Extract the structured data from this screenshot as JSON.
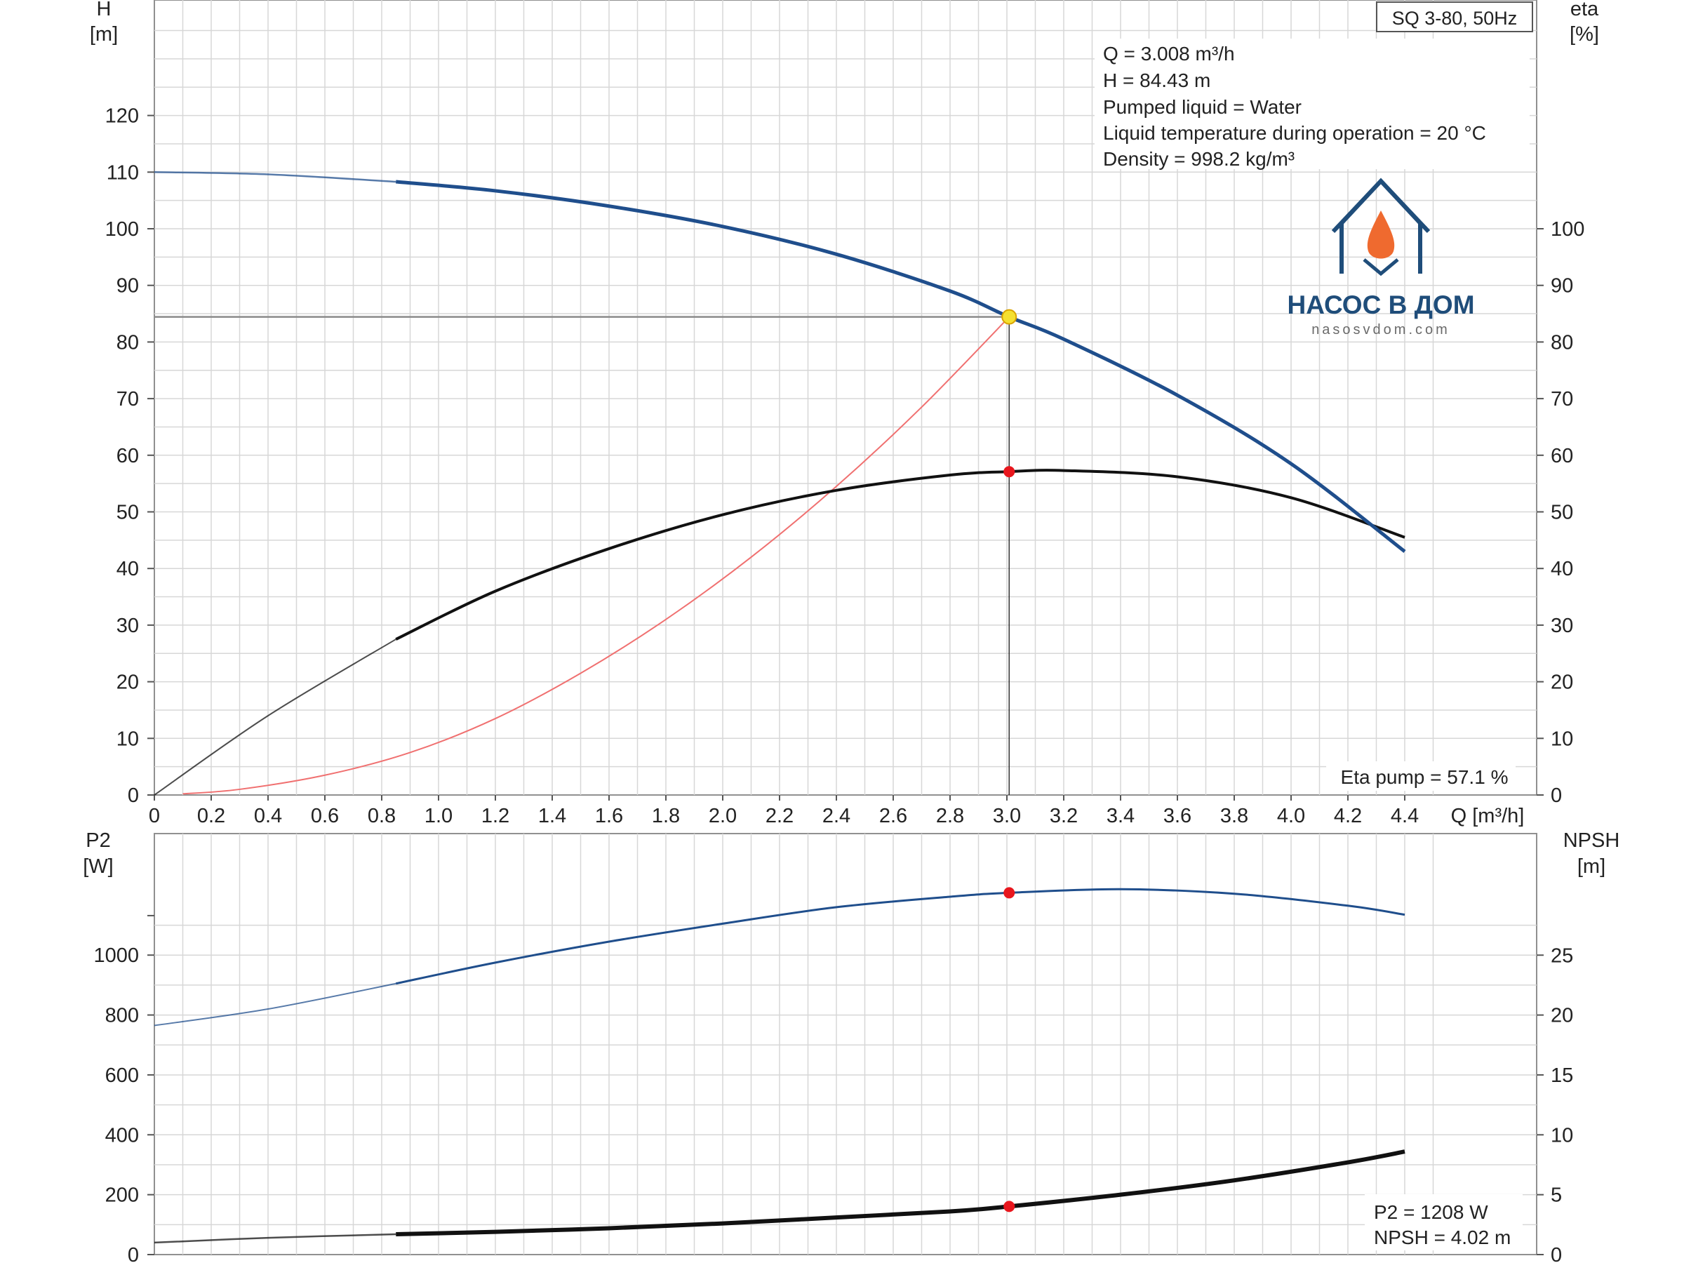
{
  "chart_data": [
    {
      "type": "line",
      "title": "SQ 3-80, 50Hz",
      "xlabel": "Q [m³/h]",
      "ylabel_left": [
        "H",
        "[m]"
      ],
      "ylabel_right": [
        "eta",
        "[%]"
      ],
      "xlim": [
        0,
        4.6
      ],
      "ylim_left": [
        0,
        135
      ],
      "ylim_right": [
        0,
        135
      ],
      "x_ticks": [
        "0",
        "0.2",
        "0.4",
        "0.6",
        "0.8",
        "1.0",
        "1.2",
        "1.4",
        "1.6",
        "1.8",
        "2.0",
        "2.2",
        "2.4",
        "2.6",
        "2.8",
        "3.0",
        "3.2",
        "3.4",
        "3.6",
        "3.8",
        "4.0",
        "4.2",
        "4.4"
      ],
      "y_ticks_left": [
        "0",
        "10",
        "20",
        "30",
        "40",
        "50",
        "60",
        "70",
        "80",
        "90",
        "100",
        "110",
        "120"
      ],
      "y_ticks_right": [
        "0",
        "10",
        "20",
        "30",
        "40",
        "50",
        "60",
        "70",
        "80",
        "90",
        "100"
      ],
      "grid": true,
      "series": [
        {
          "color": "#1f4e8c",
          "axis": "left",
          "x": [
            0,
            0.4,
            0.85,
            1.2,
            1.6,
            2.0,
            2.4,
            2.8,
            3.008,
            3.2,
            3.6,
            4.0,
            4.4
          ],
          "y": [
            110,
            109.6,
            108.3,
            106.7,
            104.0,
            100.4,
            95.5,
            89.0,
            84.43,
            80.5,
            70.6,
            58.5,
            43
          ]
        },
        {
          "color": "#111111",
          "axis": "right",
          "x": [
            0,
            0.4,
            0.85,
            1.2,
            1.6,
            2.0,
            2.4,
            2.8,
            3.008,
            3.2,
            3.6,
            4.0,
            4.4
          ],
          "y": [
            0,
            14,
            27.5,
            36,
            43.5,
            49.5,
            53.8,
            56.5,
            57.1,
            57.3,
            56.2,
            52.5,
            45.5
          ]
        },
        {
          "color": "#f07070",
          "axis": "left",
          "x": [
            0.1,
            0.3,
            0.6,
            0.9,
            1.2,
            1.5,
            1.8,
            2.1,
            2.4,
            2.7,
            3.008
          ],
          "y": [
            0.2,
            1,
            3.5,
            7.5,
            13.5,
            21.5,
            31,
            42,
            54.5,
            68.5,
            84.43
          ]
        }
      ],
      "duty_point": {
        "q": 3.008,
        "h": 84.43,
        "eta": 57.1
      },
      "annotations": [
        "Q = 3.008 m³/h",
        "H = 84.43 m",
        "Pumped liquid = Water",
        "Liquid temperature during operation = 20 °C",
        "Density = 998.2 kg/m³"
      ],
      "eta_label": "Eta pump = 57.1 %"
    },
    {
      "type": "line",
      "ylabel_left": [
        "P2",
        "[W]"
      ],
      "ylabel_right": [
        "NPSH",
        "[m]"
      ],
      "xlim": [
        0,
        4.6
      ],
      "ylim_left": [
        0,
        1200
      ],
      "ylim_right": [
        0,
        30
      ],
      "y_ticks_left": [
        "0",
        "200",
        "400",
        "600",
        "800",
        "1000"
      ],
      "y_ticks_right": [
        "0",
        "5",
        "10",
        "15",
        "20",
        "25"
      ],
      "grid": true,
      "series": [
        {
          "color": "#1f4e8c",
          "axis": "left",
          "x": [
            0,
            0.4,
            0.85,
            1.2,
            1.6,
            2.0,
            2.4,
            2.8,
            3.008,
            3.4,
            3.8,
            4.2,
            4.4
          ],
          "y": [
            765,
            820,
            905,
            975,
            1045,
            1105,
            1160,
            1195,
            1208,
            1220,
            1205,
            1165,
            1135
          ]
        },
        {
          "color": "#111111",
          "axis": "right",
          "x": [
            0,
            0.4,
            0.85,
            1.2,
            1.6,
            2.0,
            2.4,
            2.8,
            3.008,
            3.4,
            3.8,
            4.2,
            4.4
          ],
          "y": [
            1.0,
            1.4,
            1.7,
            1.9,
            2.2,
            2.6,
            3.1,
            3.6,
            4.02,
            5.0,
            6.2,
            7.7,
            8.6
          ]
        }
      ],
      "duty_point": {
        "q": 3.008,
        "p2": 1208,
        "npsh": 4.02
      },
      "annotations": [
        "P2 = 1208 W",
        "NPSH = 4.02 m"
      ]
    }
  ],
  "logo": {
    "name": "НАСОС В ДОМ",
    "url": "nasosvdom.com"
  },
  "colors": {
    "head": "#1f4e8c",
    "eta": "#111111",
    "system": "#f07070",
    "marker": "#e8161d",
    "duty_marker": "#f5e030",
    "grid": "#d7d7d7",
    "logo_orange": "#ef6a2f"
  }
}
